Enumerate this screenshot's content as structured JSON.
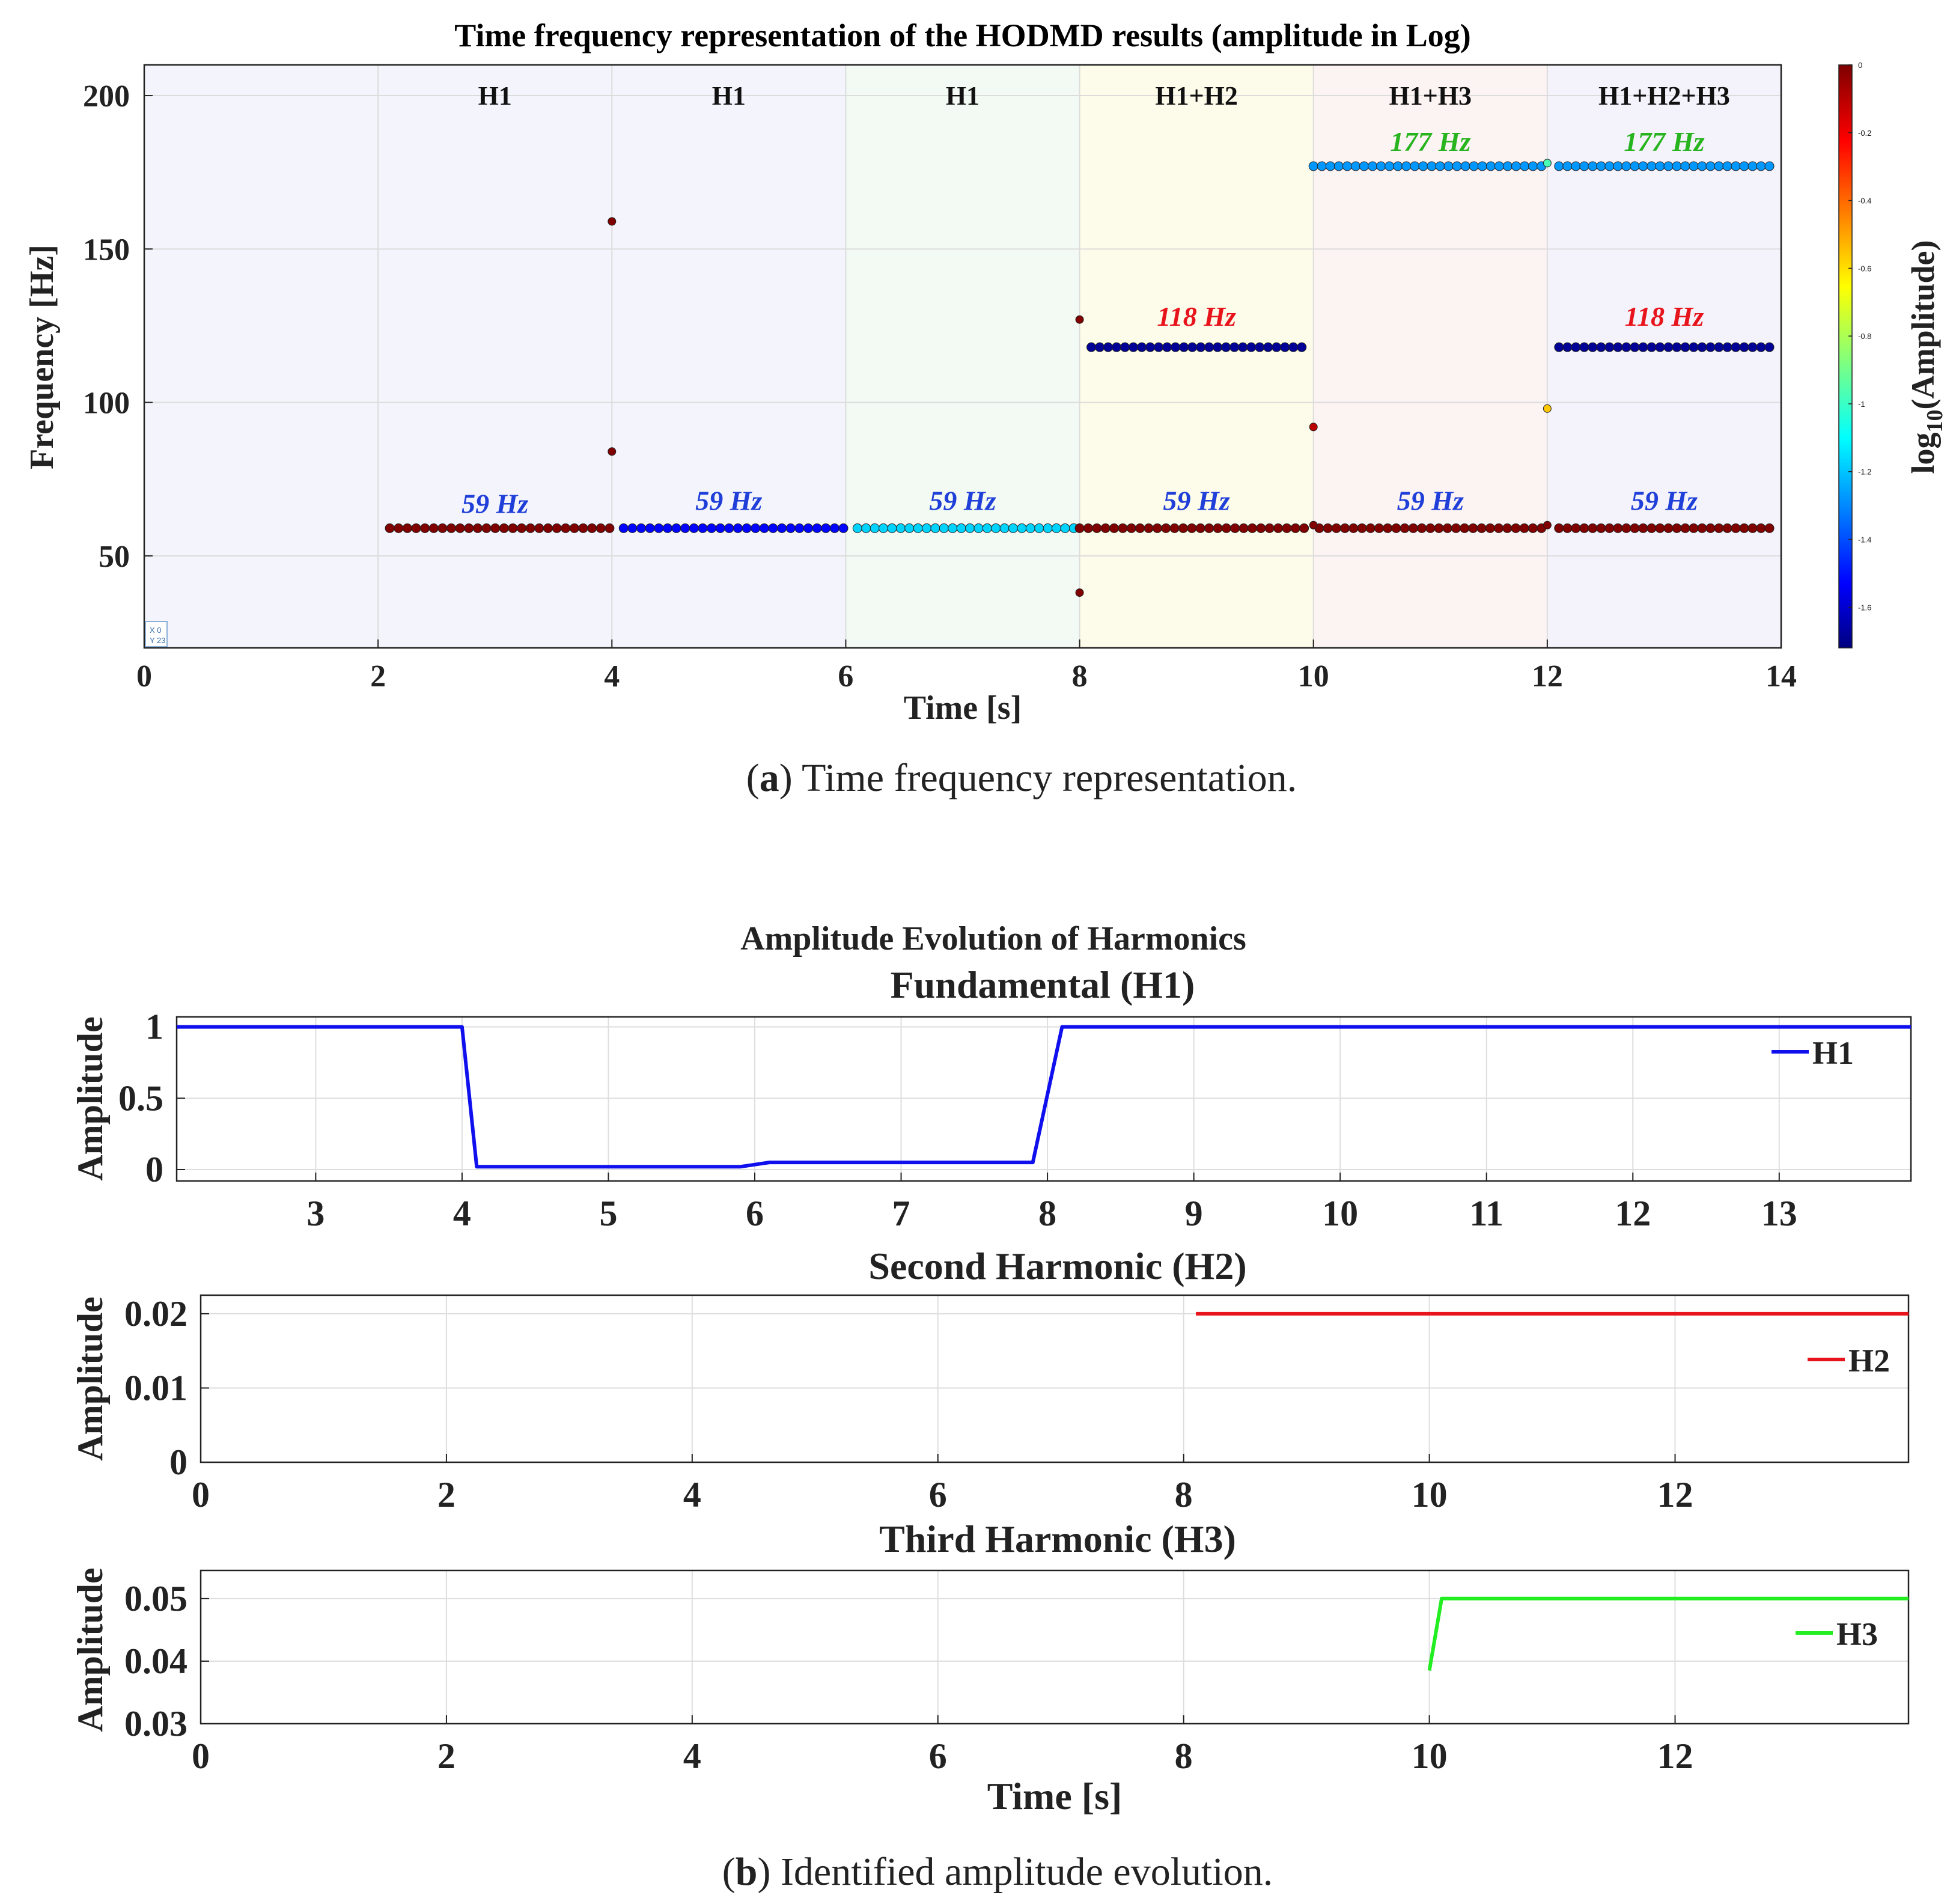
{
  "chart_data": [
    {
      "id": "tf",
      "type": "scatter",
      "title": "Time frequency representation of the HODMD results (amplitude in Log)",
      "xlabel": "Time [s]",
      "ylabel": "Frequency [Hz]",
      "xlim": [
        0,
        14
      ],
      "ylim": [
        20,
        210
      ],
      "xticks": [
        0,
        2,
        4,
        6,
        8,
        10,
        12,
        14
      ],
      "yticks": [
        50,
        100,
        150,
        200
      ],
      "grid": true,
      "regions": [
        {
          "x0": 0,
          "x1": 6,
          "color": "#f4f4fc"
        },
        {
          "x0": 6,
          "x1": 8,
          "color": "#f2faf3"
        },
        {
          "x0": 8,
          "x1": 10,
          "color": "#fdfbe9"
        },
        {
          "x0": 10,
          "x1": 12,
          "color": "#fcf3f3"
        },
        {
          "x0": 12,
          "x1": 14,
          "color": "#f4f2fb"
        }
      ],
      "region_labels": [
        {
          "x": 3,
          "text": "H1"
        },
        {
          "x": 5,
          "text": "H1"
        },
        {
          "x": 7,
          "text": "H1"
        },
        {
          "x": 9,
          "text": "H1+H2"
        },
        {
          "x": 11,
          "text": "H1+H3"
        },
        {
          "x": 13,
          "text": "H1+H2+H3"
        }
      ],
      "annotations": [
        {
          "x": 3,
          "y": 64,
          "text": "59 Hz",
          "color": "#1f3fd8"
        },
        {
          "x": 5,
          "y": 65,
          "text": "59 Hz",
          "color": "#1f3fd8"
        },
        {
          "x": 7,
          "y": 65,
          "text": "59 Hz",
          "color": "#1f3fd8"
        },
        {
          "x": 9,
          "y": 65,
          "text": "59 Hz",
          "color": "#1f3fd8"
        },
        {
          "x": 11,
          "y": 65,
          "text": "59 Hz",
          "color": "#1f3fd8"
        },
        {
          "x": 13,
          "y": 65,
          "text": "59 Hz",
          "color": "#1f3fd8"
        },
        {
          "x": 9,
          "y": 125,
          "text": "118 Hz",
          "color": "#e8141c"
        },
        {
          "x": 13,
          "y": 125,
          "text": "118 Hz",
          "color": "#e8141c"
        },
        {
          "x": 11,
          "y": 182,
          "text": "177 Hz",
          "color": "#28b41e"
        },
        {
          "x": 13,
          "y": 182,
          "text": "177 Hz",
          "color": "#28b41e"
        }
      ],
      "dot_lines": [
        {
          "x0": 2.1,
          "x1": 3.98,
          "n": 26,
          "y": 59,
          "amp": 0
        },
        {
          "x0": 4.1,
          "x1": 5.98,
          "n": 26,
          "y": 59,
          "amp": -1.5
        },
        {
          "x0": 6.1,
          "x1": 7.95,
          "n": 26,
          "y": 59,
          "amp": -1.15
        },
        {
          "x0": 8.0,
          "x1": 9.92,
          "n": 27,
          "y": 59,
          "amp": 0
        },
        {
          "x0": 10.05,
          "x1": 11.95,
          "n": 27,
          "y": 59,
          "amp": 0
        },
        {
          "x0": 12.1,
          "x1": 13.9,
          "n": 26,
          "y": 59,
          "amp": 0
        },
        {
          "x0": 8.1,
          "x1": 9.9,
          "n": 26,
          "y": 118,
          "amp": -1.68
        },
        {
          "x0": 12.1,
          "x1": 13.9,
          "n": 26,
          "y": 118,
          "amp": -1.68
        },
        {
          "x0": 10.0,
          "x1": 11.95,
          "n": 28,
          "y": 177,
          "amp": -1.25
        },
        {
          "x0": 12.1,
          "x1": 13.9,
          "n": 26,
          "y": 177,
          "amp": -1.25
        }
      ],
      "points": [
        {
          "x": 4.0,
          "y": 159,
          "amp": 0
        },
        {
          "x": 4.0,
          "y": 84,
          "amp": 0
        },
        {
          "x": 8.0,
          "y": 127,
          "amp": 0
        },
        {
          "x": 8.0,
          "y": 38,
          "amp": 0
        },
        {
          "x": 10.0,
          "y": 92,
          "amp": -0.1
        },
        {
          "x": 12.0,
          "y": 98,
          "amp": -0.55
        },
        {
          "x": 12.0,
          "y": 178,
          "amp": -0.95
        },
        {
          "x": 10.0,
          "y": 60,
          "amp": 0
        },
        {
          "x": 12.0,
          "y": 60,
          "amp": 0
        }
      ],
      "datatip": [
        "X 0",
        "Y 23"
      ],
      "colorbar": {
        "label_main": "log",
        "label_sub": "10",
        "label_tail": "(Amplitude)",
        "min": -1.72,
        "max": 0,
        "ticks": [
          "0",
          "-0.2",
          "-0.4",
          "-0.6",
          "-0.8",
          "-1",
          "-1.2",
          "-1.4",
          "-1.6"
        ],
        "tick_values": [
          0,
          -0.2,
          -0.4,
          -0.6,
          -0.8,
          -1,
          -1.2,
          -1.4,
          -1.6
        ]
      }
    },
    {
      "id": "h1",
      "type": "line",
      "suptitle": "Amplitude Evolution of Harmonics",
      "title": "Fundamental (H1)",
      "ylabel": "Amplitude",
      "xlim": [
        2.05,
        13.9
      ],
      "ylim": [
        -0.08,
        1.07
      ],
      "xticks": [
        3,
        4,
        5,
        6,
        7,
        8,
        9,
        10,
        11,
        12,
        13
      ],
      "yticks": [
        {
          "v": 0,
          "t": "0"
        },
        {
          "v": 0.5,
          "t": "0.5"
        },
        {
          "v": 1,
          "t": "1"
        }
      ],
      "legend": "H1",
      "color": "#1010ee",
      "x": [
        2.05,
        4.0,
        4.1,
        5.9,
        6.1,
        7.9,
        8.1,
        13.9
      ],
      "y": [
        1.0,
        1.0,
        0.02,
        0.02,
        0.05,
        0.05,
        1.0,
        1.0
      ]
    },
    {
      "id": "h2",
      "type": "line",
      "title": "Second Harmonic (H2)",
      "ylabel": "Amplitude",
      "xlim": [
        0,
        13.9
      ],
      "ylim": [
        0,
        0.0225
      ],
      "xticks": [
        0,
        2,
        4,
        6,
        8,
        10,
        12
      ],
      "yticks": [
        {
          "v": 0,
          "t": "0"
        },
        {
          "v": 0.01,
          "t": "0.01"
        },
        {
          "v": 0.02,
          "t": "0.02"
        }
      ],
      "legend": "H2",
      "color": "#e8141c",
      "x": [
        8.1,
        13.9
      ],
      "y": [
        0.02,
        0.02
      ]
    },
    {
      "id": "h3",
      "type": "line",
      "title": "Third Harmonic (H3)",
      "ylabel": "Amplitude",
      "xlabel": "Time [s]",
      "xlim": [
        0,
        13.9
      ],
      "ylim": [
        0.03,
        0.0545
      ],
      "xticks": [
        0,
        2,
        4,
        6,
        8,
        10,
        12
      ],
      "yticks": [
        {
          "v": 0.03,
          "t": "0.03"
        },
        {
          "v": 0.04,
          "t": "0.04"
        },
        {
          "v": 0.05,
          "t": "0.05"
        }
      ],
      "legend": "H3",
      "color": "#22ee22",
      "x": [
        10.0,
        10.1,
        13.9
      ],
      "y": [
        0.0385,
        0.05,
        0.05
      ]
    }
  ],
  "captions": [
    {
      "label": "a",
      "open": "(",
      "close": ")",
      "text": " Time frequency representation."
    },
    {
      "label": "b",
      "open": "(",
      "close": ")",
      "text": " Identified amplitude evolution."
    }
  ]
}
